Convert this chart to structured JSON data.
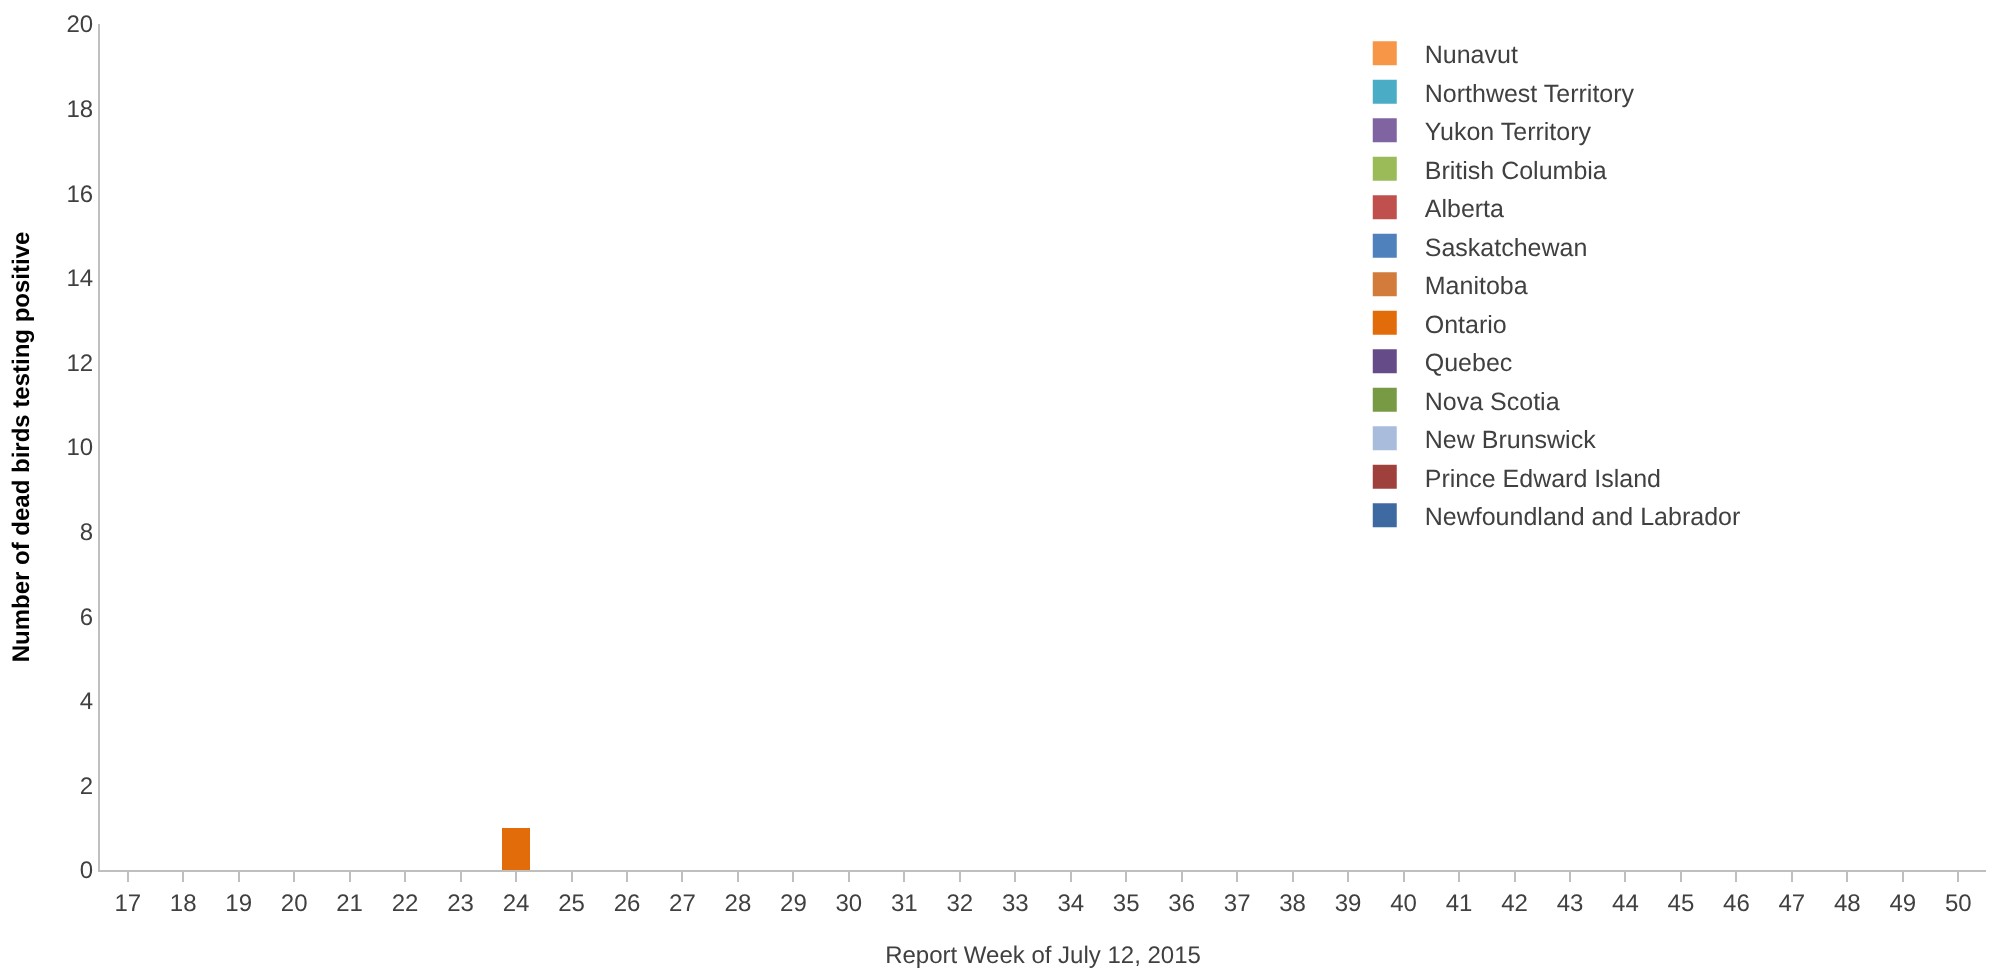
{
  "chart_data": {
    "type": "bar",
    "stacked": true,
    "xlabel": "Report Week of July 12, 2015",
    "ylabel": "Number of dead birds testing positive",
    "categories": [
      "17",
      "18",
      "19",
      "20",
      "21",
      "22",
      "23",
      "24",
      "25",
      "26",
      "27",
      "28",
      "29",
      "30",
      "31",
      "32",
      "33",
      "34",
      "35",
      "36",
      "37",
      "38",
      "39",
      "40",
      "41",
      "42",
      "43",
      "44",
      "45",
      "46",
      "47",
      "48",
      "49",
      "50"
    ],
    "ylim": [
      0,
      20
    ],
    "yticks": [
      0,
      2,
      4,
      6,
      8,
      10,
      12,
      14,
      16,
      18,
      20
    ],
    "legend": "top right",
    "series": [
      {
        "name": "Newfoundland and Labrador",
        "color": "#3f6aa1",
        "values": [
          0,
          0,
          0,
          0,
          0,
          0,
          0,
          0,
          0,
          0,
          0,
          0,
          0,
          0,
          0,
          0,
          0,
          0,
          0,
          0,
          0,
          0,
          0,
          0,
          0,
          0,
          0,
          0,
          0,
          0,
          0,
          0,
          0,
          0
        ]
      },
      {
        "name": "Prince Edward Island",
        "color": "#a0403d",
        "values": [
          0,
          0,
          0,
          0,
          0,
          0,
          0,
          0,
          0,
          0,
          0,
          0,
          0,
          0,
          0,
          0,
          0,
          0,
          0,
          0,
          0,
          0,
          0,
          0,
          0,
          0,
          0,
          0,
          0,
          0,
          0,
          0,
          0,
          0
        ]
      },
      {
        "name": "New Brunswick",
        "color": "#a9bcdc",
        "values": [
          0,
          0,
          0,
          0,
          0,
          0,
          0,
          0,
          0,
          0,
          0,
          0,
          0,
          0,
          0,
          0,
          0,
          0,
          0,
          0,
          0,
          0,
          0,
          0,
          0,
          0,
          0,
          0,
          0,
          0,
          0,
          0,
          0,
          0
        ]
      },
      {
        "name": "Nova Scotia",
        "color": "#789a45",
        "values": [
          0,
          0,
          0,
          0,
          0,
          0,
          0,
          0,
          0,
          0,
          0,
          0,
          0,
          0,
          0,
          0,
          0,
          0,
          0,
          0,
          0,
          0,
          0,
          0,
          0,
          0,
          0,
          0,
          0,
          0,
          0,
          0,
          0,
          0
        ]
      },
      {
        "name": "Quebec",
        "color": "#654b88",
        "values": [
          0,
          0,
          0,
          0,
          0,
          0,
          0,
          0,
          0,
          0,
          0,
          0,
          0,
          0,
          0,
          0,
          0,
          0,
          0,
          0,
          0,
          0,
          0,
          0,
          0,
          0,
          0,
          0,
          0,
          0,
          0,
          0,
          0,
          0
        ]
      },
      {
        "name": "Ontario",
        "color": "#e36c0a",
        "values": [
          0,
          0,
          0,
          0,
          0,
          0,
          0,
          1,
          0,
          0,
          0,
          0,
          0,
          0,
          0,
          0,
          0,
          0,
          0,
          0,
          0,
          0,
          0,
          0,
          0,
          0,
          0,
          0,
          0,
          0,
          0,
          0,
          0,
          0
        ]
      },
      {
        "name": "Manitoba",
        "color": "#d27b3a",
        "values": [
          0,
          0,
          0,
          0,
          0,
          0,
          0,
          0,
          0,
          0,
          0,
          0,
          0,
          0,
          0,
          0,
          0,
          0,
          0,
          0,
          0,
          0,
          0,
          0,
          0,
          0,
          0,
          0,
          0,
          0,
          0,
          0,
          0,
          0
        ]
      },
      {
        "name": "Saskatchewan",
        "color": "#4f81bd",
        "values": [
          0,
          0,
          0,
          0,
          0,
          0,
          0,
          0,
          0,
          0,
          0,
          0,
          0,
          0,
          0,
          0,
          0,
          0,
          0,
          0,
          0,
          0,
          0,
          0,
          0,
          0,
          0,
          0,
          0,
          0,
          0,
          0,
          0,
          0
        ]
      },
      {
        "name": "Alberta",
        "color": "#c0504d",
        "values": [
          0,
          0,
          0,
          0,
          0,
          0,
          0,
          0,
          0,
          0,
          0,
          0,
          0,
          0,
          0,
          0,
          0,
          0,
          0,
          0,
          0,
          0,
          0,
          0,
          0,
          0,
          0,
          0,
          0,
          0,
          0,
          0,
          0,
          0
        ]
      },
      {
        "name": "British Columbia",
        "color": "#9bbb59",
        "values": [
          0,
          0,
          0,
          0,
          0,
          0,
          0,
          0,
          0,
          0,
          0,
          0,
          0,
          0,
          0,
          0,
          0,
          0,
          0,
          0,
          0,
          0,
          0,
          0,
          0,
          0,
          0,
          0,
          0,
          0,
          0,
          0,
          0,
          0
        ]
      },
      {
        "name": "Yukon Territory",
        "color": "#8064a2",
        "values": [
          0,
          0,
          0,
          0,
          0,
          0,
          0,
          0,
          0,
          0,
          0,
          0,
          0,
          0,
          0,
          0,
          0,
          0,
          0,
          0,
          0,
          0,
          0,
          0,
          0,
          0,
          0,
          0,
          0,
          0,
          0,
          0,
          0,
          0
        ]
      },
      {
        "name": "Northwest Territory",
        "color": "#4bacc6",
        "values": [
          0,
          0,
          0,
          0,
          0,
          0,
          0,
          0,
          0,
          0,
          0,
          0,
          0,
          0,
          0,
          0,
          0,
          0,
          0,
          0,
          0,
          0,
          0,
          0,
          0,
          0,
          0,
          0,
          0,
          0,
          0,
          0,
          0,
          0
        ]
      },
      {
        "name": "Nunavut",
        "color": "#f79646",
        "values": [
          0,
          0,
          0,
          0,
          0,
          0,
          0,
          0,
          0,
          0,
          0,
          0,
          0,
          0,
          0,
          0,
          0,
          0,
          0,
          0,
          0,
          0,
          0,
          0,
          0,
          0,
          0,
          0,
          0,
          0,
          0,
          0,
          0,
          0
        ]
      }
    ]
  }
}
